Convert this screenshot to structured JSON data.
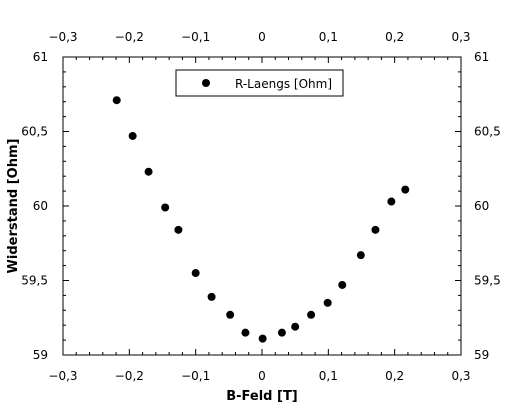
{
  "chart_data": {
    "type": "scatter",
    "xlabel": "B-Feld [T]",
    "ylabel": "Widerstand [Ohm]",
    "xlim": [
      -0.3,
      0.3
    ],
    "ylim": [
      59,
      61
    ],
    "x_ticks": [
      "−0,3",
      "−0,2",
      "−0,1",
      "0",
      "0,1",
      "0,2",
      "0,3"
    ],
    "x_tick_values": [
      -0.3,
      -0.2,
      -0.1,
      0,
      0.1,
      0.2,
      0.3
    ],
    "y_ticks": [
      "59",
      "59,5",
      "60",
      "60,5",
      "61"
    ],
    "y_tick_values": [
      59,
      59.5,
      60,
      60.5,
      61
    ],
    "grid": false,
    "legend_position": "top-center",
    "mirrored_axes": true,
    "series": [
      {
        "name": "R-Laengs [Ohm]",
        "color": "#000000",
        "marker": "circle",
        "x": [
          -0.219,
          -0.195,
          -0.171,
          -0.146,
          -0.126,
          -0.1,
          -0.076,
          -0.048,
          -0.025,
          0.001,
          0.03,
          0.05,
          0.074,
          0.099,
          0.121,
          0.149,
          0.171,
          0.195,
          0.216
        ],
        "y": [
          60.71,
          60.47,
          60.23,
          59.99,
          59.84,
          59.55,
          59.39,
          59.27,
          59.15,
          59.11,
          59.15,
          59.19,
          59.27,
          59.35,
          59.47,
          59.67,
          59.84,
          60.03,
          60.11
        ]
      }
    ]
  }
}
